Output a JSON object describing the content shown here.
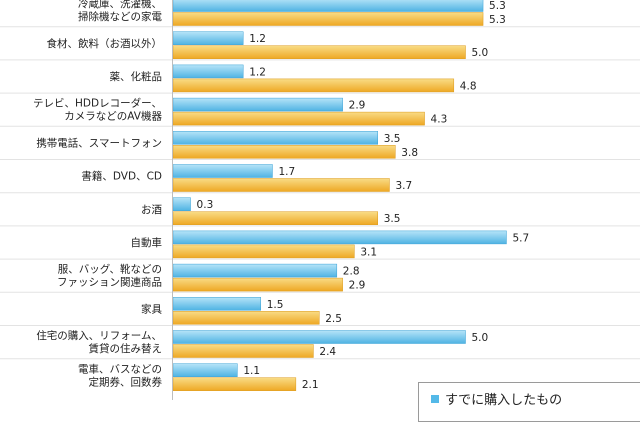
{
  "chart_data": {
    "type": "bar",
    "orientation": "horizontal",
    "categories": [
      [
        "冷蔵庫、洗濯機、",
        "掃除機などの家電"
      ],
      [
        "食材、飲料（お酒以外）"
      ],
      [
        "薬、化粧品"
      ],
      [
        "テレビ、HDDレコーダー、",
        "カメラなどのAV機器"
      ],
      [
        "携帯電話、スマートフォン"
      ],
      [
        "書籍、DVD、CD"
      ],
      [
        "お酒"
      ],
      [
        "自動車"
      ],
      [
        "服、バッグ、靴などの",
        "ファッション関連商品"
      ],
      [
        "家具"
      ],
      [
        "住宅の購入、リフォーム、",
        "賃貸の住み替え"
      ],
      [
        "電車、バスなどの",
        "定期券、回数券"
      ]
    ],
    "series": [
      {
        "name": "すでに購入したもの",
        "color": "#54b9e8",
        "values": [
          5.3,
          1.2,
          1.2,
          2.9,
          3.5,
          1.7,
          0.3,
          5.7,
          2.8,
          1.5,
          5.0,
          1.1
        ]
      },
      {
        "color": "#f2b02e",
        "values": [
          5.3,
          5.0,
          4.8,
          4.3,
          3.8,
          3.7,
          3.5,
          3.1,
          2.9,
          2.5,
          2.4,
          2.1
        ]
      }
    ],
    "data_labels": [
      [
        "5.3",
        "1.2",
        "1.2",
        "2.9",
        "3.5",
        "1.7",
        "0.3",
        "5.7",
        "2.8",
        "1.5",
        "5.0",
        "1.1"
      ],
      [
        "5.3",
        "5.0",
        "4.8",
        "4.3",
        "3.8",
        "3.7",
        "3.5",
        "3.1",
        "2.9",
        "2.5",
        "2.4",
        "2.1"
      ]
    ],
    "legend": {
      "placement": "bottom-right",
      "label": "すでに購入したもの"
    }
  }
}
